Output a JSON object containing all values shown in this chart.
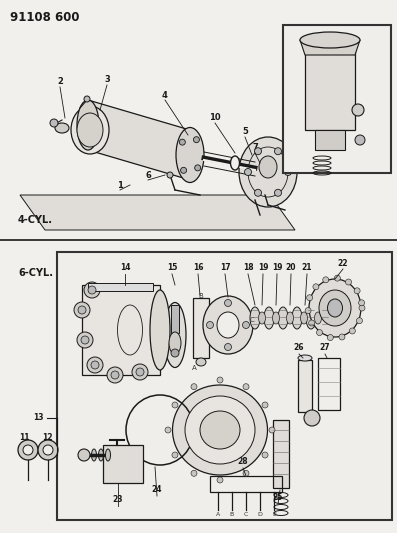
{
  "title": "91108 600",
  "bg_color": "#f2f0ec",
  "line_color": "#1a1a1a",
  "section1_label": "4-CYL.",
  "section2_label": "6-CYL.",
  "figsize": [
    3.97,
    5.33
  ],
  "dpi": 100
}
